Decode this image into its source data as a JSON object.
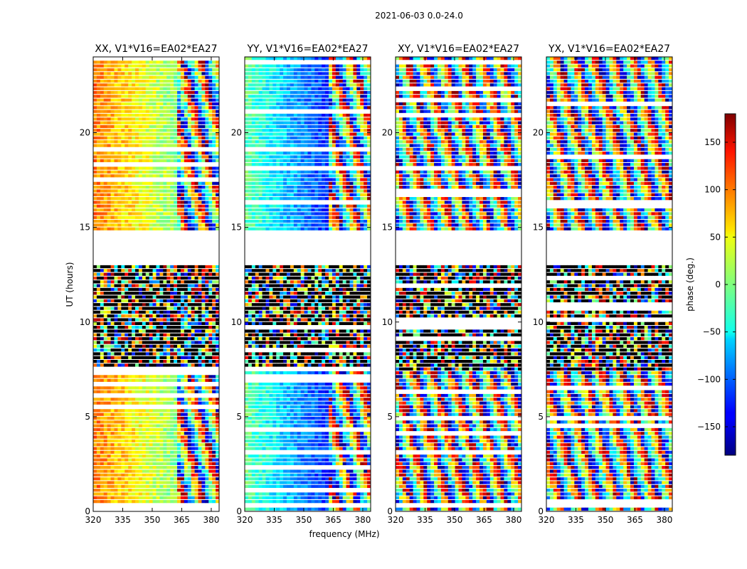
{
  "chart_data": {
    "type": "heatmap",
    "suptitle": "2021-06-03 0.0-24.0",
    "xlabel": "frequency (MHz)",
    "ylabel": "UT (hours)",
    "xlim": [
      320,
      384
    ],
    "ylim": [
      0,
      24
    ],
    "xticks": [
      "320",
      "335",
      "350",
      "365",
      "380"
    ],
    "xtick_values": [
      320,
      335,
      350,
      365,
      380
    ],
    "yticks": [
      "0",
      "5",
      "10",
      "15",
      "20"
    ],
    "ytick_values": [
      0,
      5,
      10,
      15,
      20
    ],
    "colormap": "jet",
    "colorbar": {
      "label": "phase (deg.)",
      "range": [
        -180,
        180
      ],
      "ticks": [
        "−150",
        "−100",
        "−50",
        "0",
        "50",
        "100",
        "150"
      ],
      "tick_values": [
        -150,
        -100,
        -50,
        0,
        50,
        100,
        150
      ]
    },
    "panels": [
      {
        "title": "XX, V1*V16=EA02*EA27",
        "base_phase": 95,
        "phase_slope": -2.2
      },
      {
        "title": "YY, V1*V16=EA02*EA27",
        "base_phase": -10,
        "phase_slope": -2.6
      },
      {
        "title": "XY, V1*V16=EA02*EA27",
        "base_phase": 0,
        "phase_slope": 0
      },
      {
        "title": "YX, V1*V16=EA02*EA27",
        "base_phase": 0,
        "phase_slope": 0
      }
    ],
    "no_data_ranges_hours": [
      [
        0.2,
        0.5
      ],
      [
        13.1,
        14.8
      ]
    ],
    "noisy_ranges_hours": [
      [
        7.5,
        13.1
      ]
    ]
  }
}
